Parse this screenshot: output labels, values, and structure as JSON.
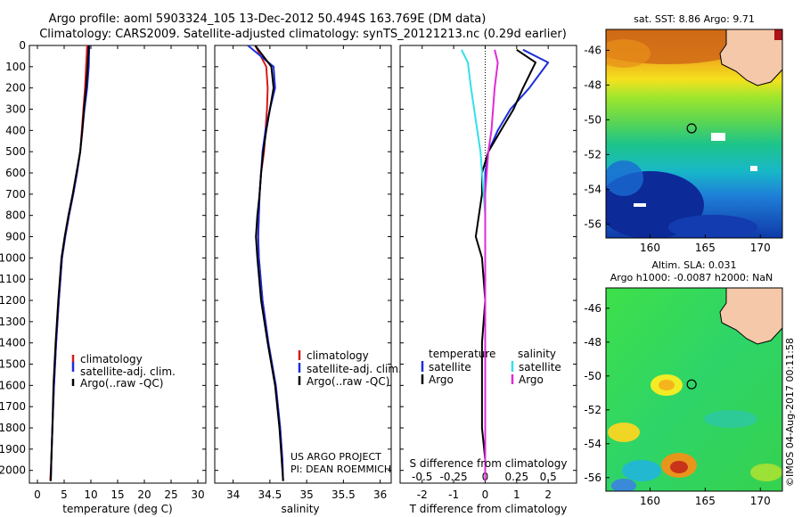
{
  "header": {
    "line1": "Argo profile: aoml 5903324_105 13-Dec-2012 50.494S 163.769E (DM data)",
    "line2": "Climatology: CARS2009. Satellite-adjusted climatology: synTS_20121213.nc (0.29d earlier)"
  },
  "credit": {
    "project": "US ARGO PROJECT",
    "pi": "PI: DEAN ROEMMICH",
    "watermark": "©IMOS 04-Aug-2017 00:11:58"
  },
  "colors": {
    "climatology": "#d61a1a",
    "satellite": "#1c2fd8",
    "argo": "#000000",
    "s_satellite": "#33e0e8",
    "s_argo": "#e02bd8"
  },
  "chart_data": [
    {
      "id": "temperature",
      "type": "line",
      "xlabel": "temperature (deg C)",
      "ylim": [
        2060,
        0
      ],
      "xlim": [
        -1.5,
        31.5
      ],
      "xticks": [
        0,
        5,
        10,
        15,
        20,
        25,
        30
      ],
      "yticks": [
        0,
        100,
        200,
        300,
        400,
        500,
        600,
        700,
        800,
        900,
        1000,
        1100,
        1200,
        1300,
        1400,
        1500,
        1600,
        1700,
        1800,
        1900,
        2000
      ],
      "legend": [
        "climatology",
        "satellite-adj. clim.",
        "Argo(..raw -QC)"
      ],
      "series": [
        {
          "name": "climatology",
          "color": "#d61a1a",
          "x": [
            9.3,
            9.1,
            8.9,
            8.6,
            8.3,
            8.0,
            7.4,
            6.7,
            5.9,
            5.2,
            4.6,
            4.0,
            3.5,
            3.1,
            2.8,
            2.6,
            2.4
          ],
          "y": [
            0,
            100,
            200,
            300,
            400,
            500,
            600,
            700,
            800,
            900,
            1000,
            1200,
            1400,
            1600,
            1800,
            1950,
            2050
          ]
        },
        {
          "name": "satellite-adj. clim.",
          "color": "#1c2fd8",
          "x": [
            9.7,
            9.6,
            9.3,
            8.8,
            8.4,
            8.0,
            7.4,
            6.7,
            5.9,
            5.2,
            4.6,
            4.0,
            3.5,
            3.1,
            2.8,
            2.6,
            2.5
          ],
          "y": [
            0,
            100,
            200,
            300,
            400,
            500,
            600,
            700,
            800,
            900,
            1000,
            1200,
            1400,
            1600,
            1800,
            1950,
            2050
          ]
        },
        {
          "name": "Argo(..raw -QC)",
          "color": "#000000",
          "x": [
            9.6,
            9.4,
            9.1,
            8.7,
            8.4,
            8.0,
            7.3,
            6.6,
            5.8,
            5.1,
            4.5,
            3.9,
            3.4,
            3.0,
            2.8,
            2.6,
            2.5
          ],
          "y": [
            0,
            100,
            200,
            300,
            400,
            500,
            600,
            700,
            800,
            900,
            1000,
            1200,
            1400,
            1600,
            1800,
            1950,
            2050
          ]
        }
      ]
    },
    {
      "id": "salinity",
      "type": "line",
      "xlabel": "salinity",
      "ylim": [
        2060,
        0
      ],
      "xlim": [
        33.75,
        36.15
      ],
      "xticks": [
        34,
        34.5,
        35,
        35.5,
        36
      ],
      "xticklabels": [
        "34",
        "34.5",
        "35",
        "35.5",
        "36"
      ],
      "legend": [
        "climatology",
        "satellite-adj. clim.",
        "Argo(..raw -QC)"
      ],
      "series": [
        {
          "name": "climatology",
          "color": "#d61a1a",
          "x": [
            34.3,
            34.45,
            34.47,
            34.46,
            34.44,
            34.42,
            34.38,
            34.36,
            34.35,
            34.34,
            34.35,
            34.4,
            34.48,
            34.58,
            34.64,
            34.67,
            34.68
          ],
          "y": [
            0,
            100,
            200,
            300,
            400,
            500,
            600,
            700,
            800,
            900,
            1000,
            1200,
            1400,
            1600,
            1800,
            1950,
            2050
          ]
        },
        {
          "name": "satellite-adj. clim.",
          "color": "#1c2fd8",
          "x": [
            34.2,
            34.55,
            34.57,
            34.5,
            34.44,
            34.4,
            34.38,
            34.36,
            34.35,
            34.34,
            34.35,
            34.4,
            34.48,
            34.58,
            34.64,
            34.67,
            34.68
          ],
          "y": [
            0,
            100,
            200,
            300,
            400,
            500,
            600,
            700,
            800,
            900,
            1000,
            1200,
            1400,
            1600,
            1800,
            1950,
            2050
          ]
        },
        {
          "name": "Argo(..raw -QC)",
          "color": "#000000",
          "x": [
            34.3,
            34.52,
            34.55,
            34.5,
            34.45,
            34.41,
            34.38,
            34.36,
            34.33,
            34.31,
            34.33,
            34.38,
            34.47,
            34.57,
            34.63,
            34.66,
            34.68
          ],
          "y": [
            0,
            100,
            200,
            300,
            400,
            500,
            600,
            700,
            800,
            900,
            1000,
            1200,
            1400,
            1600,
            1800,
            1950,
            2050
          ]
        }
      ]
    },
    {
      "id": "differences",
      "type": "line",
      "xlabel": "T difference from climatology",
      "xlabel_top": "S difference from climatology",
      "ylim": [
        2060,
        0
      ],
      "xlim": [
        -2.7,
        2.9
      ],
      "xticks": [
        -2,
        -1,
        0,
        1,
        2
      ],
      "sticks": [
        -0.5,
        -0.25,
        0,
        0.25,
        0.5
      ],
      "sticklabels": [
        "-0.5",
        "-0.25",
        "0",
        "0.25",
        "0.5"
      ],
      "legend_temperature": {
        "title": "temperature",
        "items": [
          "satellite",
          "Argo"
        ]
      },
      "legend_salinity": {
        "title": "salinity",
        "items": [
          "satellite",
          "Argo"
        ]
      },
      "series": [
        {
          "name": "T satellite",
          "color": "#1c2fd8",
          "x": [
            1.2,
            2.0,
            1.4,
            0.8,
            0.4,
            0.1,
            0.0,
            0.0,
            0.0,
            0.0,
            0.0,
            0.0,
            0.0,
            0.0,
            0.0,
            0.0,
            0.0
          ],
          "y": [
            20,
            80,
            200,
            300,
            400,
            500,
            600,
            700,
            800,
            900,
            1000,
            1200,
            1400,
            1600,
            1800,
            1950,
            2050
          ]
        },
        {
          "name": "T Argo",
          "color": "#000000",
          "x": [
            1.0,
            1.6,
            1.2,
            0.9,
            0.5,
            0.1,
            -0.1,
            -0.1,
            -0.2,
            -0.3,
            -0.1,
            0.0,
            -0.1,
            -0.1,
            -0.1,
            0.0,
            0.0
          ],
          "y": [
            20,
            80,
            200,
            300,
            400,
            500,
            600,
            700,
            800,
            900,
            1000,
            1200,
            1400,
            1600,
            1800,
            1950,
            2050
          ]
        },
        {
          "name": "S satellite",
          "color": "#33e0e8",
          "x": [
            -0.75,
            -0.55,
            -0.45,
            -0.35,
            -0.25,
            -0.15,
            -0.1,
            -0.05,
            0.0,
            0.0,
            0.0,
            0.0,
            0.0,
            0.0,
            0.0,
            0.0,
            0.0
          ],
          "y": [
            20,
            80,
            200,
            300,
            400,
            500,
            600,
            700,
            800,
            900,
            1000,
            1200,
            1400,
            1600,
            1800,
            1950,
            2050
          ]
        },
        {
          "name": "S Argo",
          "color": "#e02bd8",
          "x": [
            0.3,
            0.4,
            0.3,
            0.25,
            0.2,
            0.1,
            0.05,
            0.0,
            0.0,
            0.0,
            0.0,
            0.0,
            0.0,
            0.0,
            0.0,
            0.0,
            0.0
          ],
          "y": [
            20,
            80,
            200,
            300,
            400,
            500,
            600,
            700,
            800,
            900,
            1000,
            1200,
            1400,
            1600,
            1800,
            1950,
            2050
          ]
        }
      ]
    },
    {
      "id": "sst_map",
      "type": "heatmap",
      "title": "sat. SST: 8.86  Argo: 9.71",
      "xlim": [
        156,
        172
      ],
      "ylim": [
        -56.8,
        -44.8
      ],
      "xticks": [
        160,
        165,
        170
      ],
      "yticks": [
        -46,
        -48,
        -50,
        -52,
        -54,
        -56
      ],
      "float_position": [
        163.769,
        -50.494
      ]
    },
    {
      "id": "sla_map",
      "type": "heatmap",
      "title_line1": "Altim. SLA: 0.031",
      "title_line2": "Argo h1000: -0.0087 h2000: NaN",
      "xlim": [
        156,
        172
      ],
      "ylim": [
        -56.8,
        -44.8
      ],
      "xticks": [
        160,
        165,
        170
      ],
      "yticks": [
        -46,
        -48,
        -50,
        -52,
        -54,
        -56
      ],
      "float_position": [
        163.769,
        -50.494
      ]
    }
  ]
}
